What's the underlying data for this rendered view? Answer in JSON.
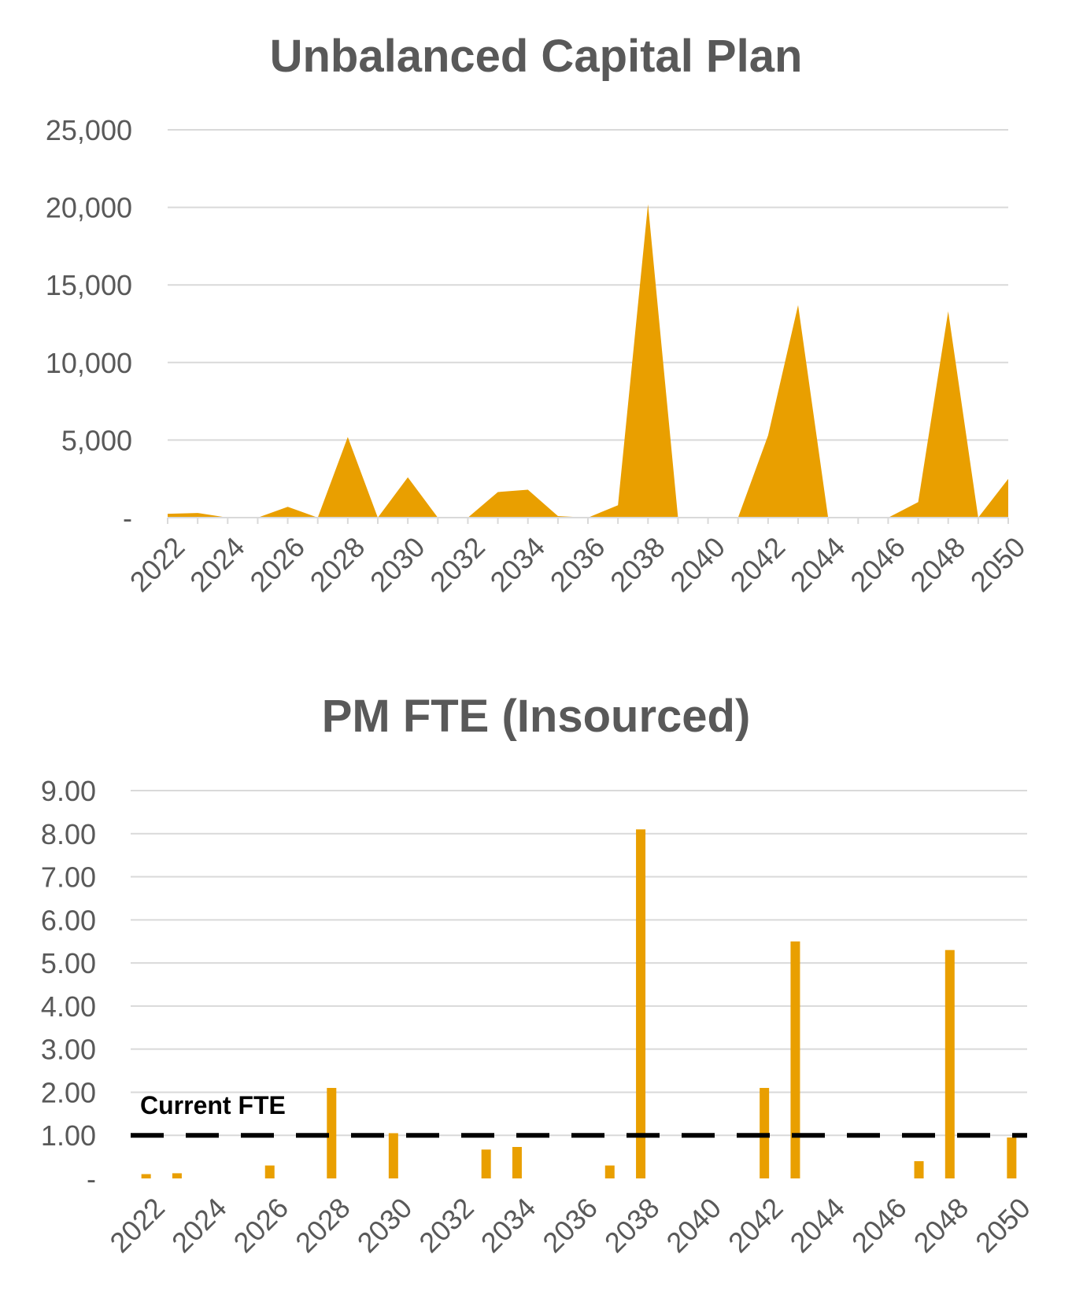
{
  "chart_data": [
    {
      "type": "area",
      "title": "Unbalanced Capital Plan",
      "x": [
        2022,
        2023,
        2024,
        2025,
        2026,
        2027,
        2028,
        2029,
        2030,
        2031,
        2032,
        2033,
        2034,
        2035,
        2036,
        2037,
        2038,
        2039,
        2040,
        2041,
        2042,
        2043,
        2044,
        2045,
        2046,
        2047,
        2048,
        2049,
        2050
      ],
      "x_tick_labels": [
        "2022",
        "2024",
        "2026",
        "2028",
        "2030",
        "2032",
        "2034",
        "2036",
        "2038",
        "2040",
        "2042",
        "2044",
        "2046",
        "2048",
        "2050"
      ],
      "values": [
        250,
        300,
        0,
        0,
        700,
        0,
        5200,
        0,
        2600,
        0,
        0,
        1650,
        1800,
        100,
        0,
        800,
        20200,
        0,
        0,
        0,
        5300,
        13700,
        0,
        0,
        0,
        1000,
        13300,
        0,
        2500
      ],
      "y_tick_labels": [
        "-",
        "5,000",
        "10,000",
        "15,000",
        "20,000",
        "25,000"
      ],
      "ylim": [
        0,
        25000
      ],
      "color": "#E99F00",
      "grid": true,
      "xlabel": "",
      "ylabel": ""
    },
    {
      "type": "bar",
      "title": "PM FTE (Insourced)",
      "x": [
        2022,
        2023,
        2024,
        2025,
        2026,
        2027,
        2028,
        2029,
        2030,
        2031,
        2032,
        2033,
        2034,
        2035,
        2036,
        2037,
        2038,
        2039,
        2040,
        2041,
        2042,
        2043,
        2044,
        2045,
        2046,
        2047,
        2048,
        2049,
        2050
      ],
      "x_tick_labels": [
        "2022",
        "2024",
        "2026",
        "2028",
        "2030",
        "2032",
        "2034",
        "2036",
        "2038",
        "2040",
        "2042",
        "2044",
        "2046",
        "2048",
        "2050"
      ],
      "values": [
        0.1,
        0.12,
        0,
        0,
        0.3,
        0,
        2.1,
        0,
        1.05,
        0,
        0,
        0.67,
        0.73,
        0,
        0,
        0.3,
        8.1,
        0,
        0,
        0,
        2.1,
        5.5,
        0,
        0,
        0,
        0.4,
        5.3,
        0,
        0.95
      ],
      "y_tick_labels": [
        "-",
        "1.00",
        "2.00",
        "3.00",
        "4.00",
        "5.00",
        "6.00",
        "7.00",
        "8.00",
        "9.00"
      ],
      "ylim": [
        0,
        9
      ],
      "color": "#E99F00",
      "grid": true,
      "reference_line": {
        "label": "Current FTE",
        "value": 1.0,
        "color": "#000000",
        "style": "dashed"
      },
      "xlabel": "",
      "ylabel": ""
    }
  ]
}
